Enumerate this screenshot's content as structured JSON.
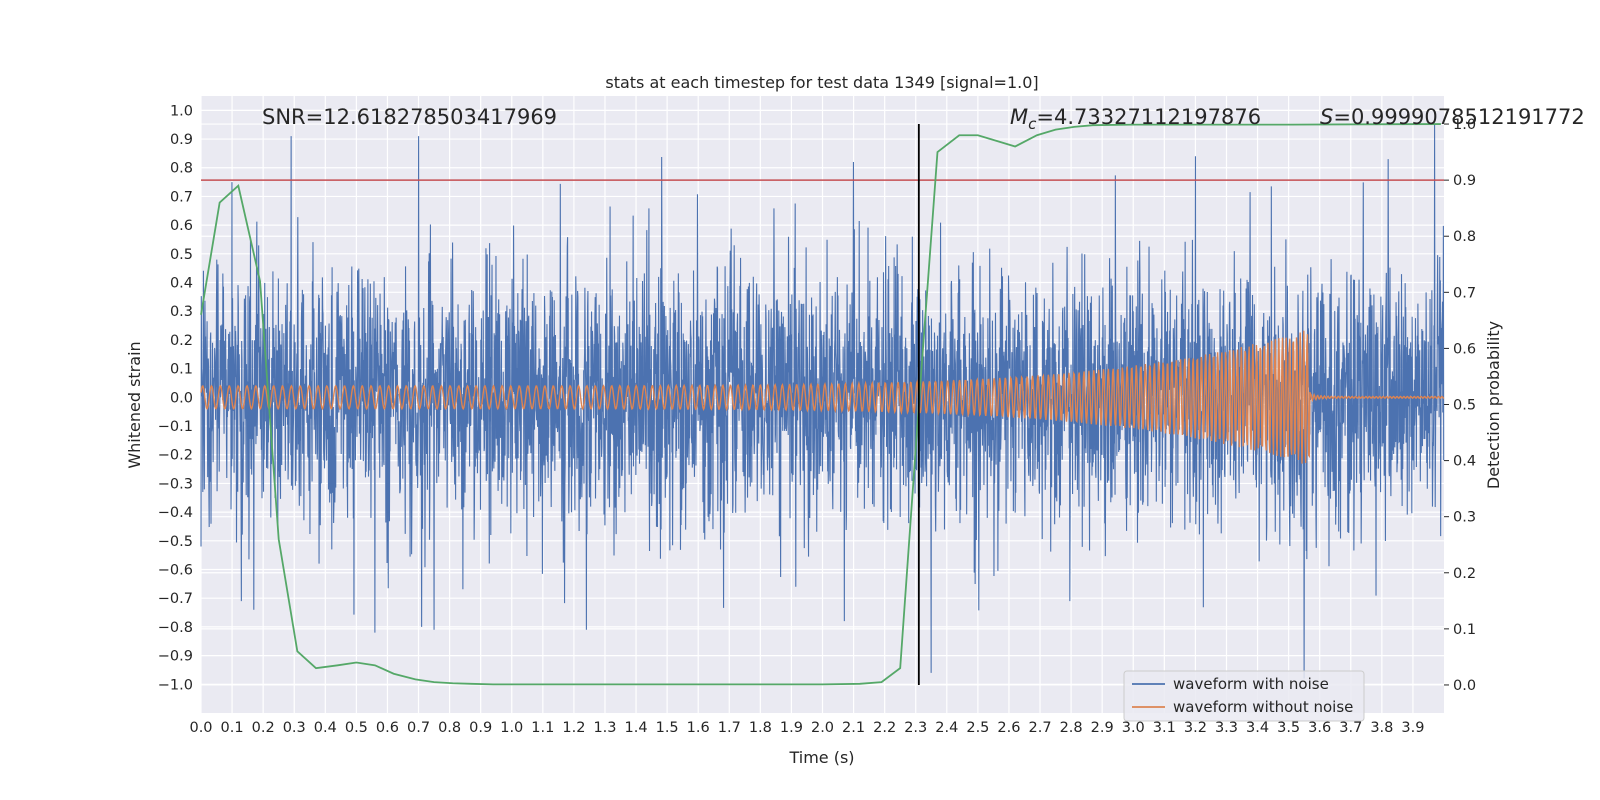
{
  "chart_data": {
    "type": "line",
    "title": "stats at each timestep for test data 1349 [signal=1.0]",
    "xlabel": "Time (s)",
    "ylabel_left": "Whitened strain",
    "ylabel_right": "Detection probability",
    "xlim": [
      0.0,
      4.0
    ],
    "ylim_left": [
      -1.1,
      1.05
    ],
    "ylim_right": [
      -0.05,
      1.05
    ],
    "x_ticks": [
      "0.0",
      "0.1",
      "0.2",
      "0.3",
      "0.4",
      "0.5",
      "0.6",
      "0.7",
      "0.8",
      "0.9",
      "1.0",
      "1.1",
      "1.2",
      "1.3",
      "1.4",
      "1.5",
      "1.6",
      "1.7",
      "1.8",
      "1.9",
      "2.0",
      "2.1",
      "2.2",
      "2.3",
      "2.4",
      "2.5",
      "2.6",
      "2.7",
      "2.8",
      "2.9",
      "3.0",
      "3.1",
      "3.2",
      "3.3",
      "3.4",
      "3.5",
      "3.6",
      "3.7",
      "3.8",
      "3.9"
    ],
    "y_ticks_left": [
      "1.0",
      "0.9",
      "0.8",
      "0.7",
      "0.6",
      "0.5",
      "0.4",
      "0.3",
      "0.2",
      "0.1",
      "0.0",
      "−0.1",
      "−0.2",
      "−0.3",
      "−0.4",
      "−0.5",
      "−0.6",
      "−0.7",
      "−0.8",
      "−0.9",
      "−1.0"
    ],
    "y_ticks_right": [
      "1.0",
      "0.9",
      "0.8",
      "0.7",
      "0.6",
      "0.5",
      "0.4",
      "0.3",
      "0.2",
      "0.1",
      "0.0"
    ],
    "grid": true,
    "legend_placement": "lower-right",
    "annotations": {
      "snr": "SNR=12.618278503417969",
      "mc_symbol": "M",
      "mc_sub": "c",
      "mc_value": "=4.73327112197876",
      "s_symbol": "S",
      "s_value": "=0.9999078512191772"
    },
    "threshold": {
      "axis": "right",
      "value": 0.9,
      "color": "#c44e52"
    },
    "vertical_marker": {
      "x": 2.31,
      "color": "#000000"
    },
    "series": [
      {
        "name": "waveform with noise",
        "axis": "left",
        "color": "#4c72b0",
        "kind": "dense-noise",
        "std": 0.22,
        "sample_rate": 1024,
        "spikes": [
          {
            "x": 0.0,
            "y": -0.52
          },
          {
            "x": 0.1,
            "y": 0.75
          },
          {
            "x": 0.13,
            "y": -0.71
          },
          {
            "x": 0.17,
            "y": -0.74
          },
          {
            "x": 0.29,
            "y": 0.91
          },
          {
            "x": 0.56,
            "y": -0.82
          },
          {
            "x": 0.7,
            "y": 0.91
          },
          {
            "x": 0.71,
            "y": -0.8
          },
          {
            "x": 0.75,
            "y": -0.81
          },
          {
            "x": 1.24,
            "y": -0.81
          },
          {
            "x": 2.07,
            "y": -0.78
          },
          {
            "x": 2.1,
            "y": 0.82
          },
          {
            "x": 2.35,
            "y": -0.96
          },
          {
            "x": 3.2,
            "y": 0.84
          },
          {
            "x": 3.55,
            "y": -0.98
          },
          {
            "x": 3.82,
            "y": 0.83
          },
          {
            "x": 3.97,
            "y": 0.95
          }
        ]
      },
      {
        "name": "waveform without noise",
        "axis": "left",
        "color": "#dd8452",
        "kind": "chirp",
        "amplitude_start": 0.04,
        "amplitude_peak": 0.24,
        "merger_time": 3.57,
        "post_merger_amplitude": 0.01,
        "freq_start_hz": 35,
        "freq_end_hz": 90
      },
      {
        "name": "detection probability",
        "axis": "right",
        "color": "#55a868",
        "x": [
          0.0,
          0.06,
          0.12,
          0.19,
          0.25,
          0.31,
          0.37,
          0.44,
          0.5,
          0.56,
          0.62,
          0.69,
          0.75,
          0.81,
          0.87,
          0.94,
          1.0,
          1.2,
          1.4,
          1.6,
          1.8,
          2.0,
          2.12,
          2.19,
          2.25,
          2.31,
          2.37,
          2.44,
          2.5,
          2.56,
          2.62,
          2.69,
          2.75,
          2.81,
          2.87,
          3.0,
          3.5,
          3.99
        ],
        "y": [
          0.66,
          0.86,
          0.89,
          0.72,
          0.26,
          0.06,
          0.03,
          0.035,
          0.04,
          0.035,
          0.02,
          0.01,
          0.005,
          0.003,
          0.002,
          0.001,
          0.001,
          0.001,
          0.001,
          0.001,
          0.001,
          0.001,
          0.002,
          0.005,
          0.03,
          0.5,
          0.95,
          0.98,
          0.98,
          0.97,
          0.96,
          0.98,
          0.99,
          0.995,
          0.998,
          0.999,
          0.999,
          1.0
        ]
      }
    ]
  }
}
